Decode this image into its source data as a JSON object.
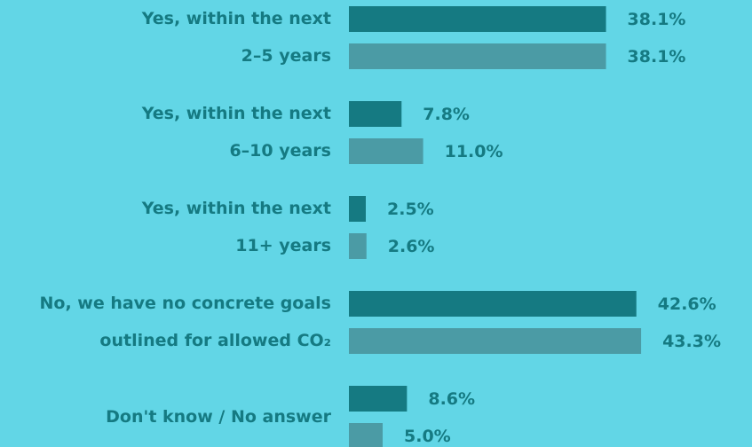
{
  "chart_data": {
    "type": "bar",
    "orientation": "horizontal",
    "categories": [
      [
        "Yes, within the next",
        "2–5 years"
      ],
      [
        "Yes, within the next",
        "6–10 years"
      ],
      [
        "Yes, within the next",
        "11+ years"
      ],
      [
        "No, we have no concrete goals",
        "outlined for allowed CO₂"
      ],
      [
        "Don't know / No answer"
      ]
    ],
    "series": [
      {
        "color": "#157a82",
        "values": [
          38.1,
          7.8,
          2.5,
          42.6,
          8.6
        ],
        "value_labels": [
          "38.1%",
          "7.8%",
          "2.5%",
          "42.6%",
          "8.6%"
        ]
      },
      {
        "color": "#4b9ba5",
        "values": [
          38.1,
          11.0,
          2.6,
          43.3,
          5.0
        ],
        "value_labels": [
          "38.1%",
          "11.0%",
          "2.6%",
          "43.3%",
          "5.0%"
        ]
      }
    ]
  }
}
